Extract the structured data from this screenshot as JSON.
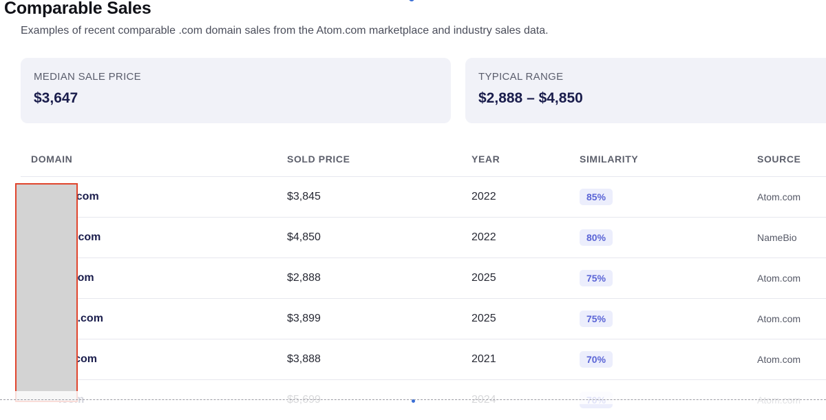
{
  "header": {
    "title": "Comparable Sales",
    "subtitle": "Examples of recent comparable .com domain sales from the Atom.com marketplace and industry sales data."
  },
  "stats": {
    "median": {
      "label": "MEDIAN SALE PRICE",
      "value": "$3,647"
    },
    "range": {
      "label": "TYPICAL RANGE",
      "value": "$2,888 – $4,850"
    }
  },
  "table": {
    "columns": [
      "DOMAIN",
      "SOLD PRICE",
      "YEAR",
      "SIMILARITY",
      "SOURCE"
    ],
    "rows": [
      {
        "domain": "rth.com",
        "price": "$3,845",
        "year": "2022",
        "similarity": "85%",
        "source": "Atom.com"
      },
      {
        "domain": "der.com",
        "price": "$4,850",
        "year": "2022",
        "similarity": "80%",
        "source": "NameBio"
      },
      {
        "domain": "ta.com",
        "price": "$2,888",
        "year": "2025",
        "similarity": "75%",
        "source": "Atom.com"
      },
      {
        "domain": "nes.com",
        "price": "$3,899",
        "year": "2025",
        "similarity": "75%",
        "source": "Atom.com"
      },
      {
        "domain": "ko.com",
        "price": "$3,888",
        "year": "2021",
        "similarity": "70%",
        "source": "Atom.com"
      },
      {
        "domain": ".com",
        "price": "$5,699",
        "year": "2024",
        "similarity": "70%",
        "source": "Atom.com"
      }
    ]
  },
  "colors": {
    "accent": "#5a64d6",
    "redaction_border": "#e0442c",
    "card_bg": "#f1f2f8"
  }
}
